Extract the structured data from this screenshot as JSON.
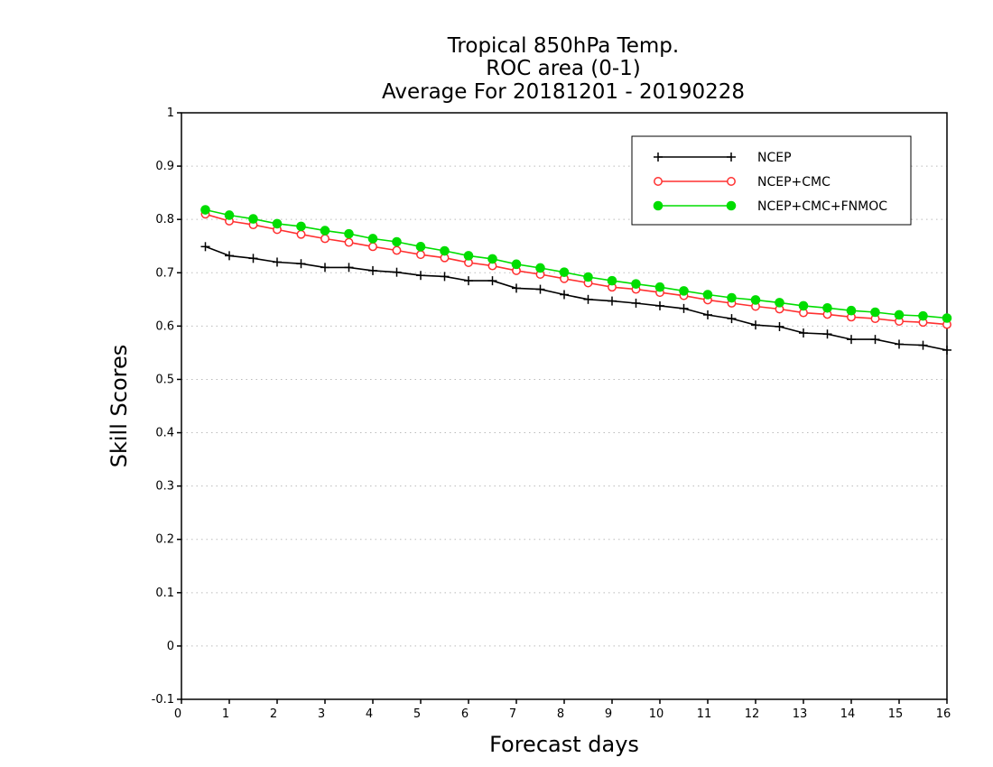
{
  "chart_data": {
    "type": "line",
    "title": [
      "Tropical 850hPa Temp.",
      "ROC area (0-1)",
      "Average For 20181201 - 20190228"
    ],
    "xlabel": "Forecast days",
    "ylabel": "Skill Scores",
    "xlim": [
      0,
      16
    ],
    "ylim": [
      -0.1,
      1
    ],
    "xticks": [
      0,
      1,
      2,
      3,
      4,
      5,
      6,
      7,
      8,
      9,
      10,
      11,
      12,
      13,
      14,
      15,
      16
    ],
    "yticks": [
      -0.1,
      0,
      0.1,
      0.2,
      0.3,
      0.4,
      0.5,
      0.6,
      0.7,
      0.8,
      0.9,
      1
    ],
    "ytick_labels": [
      "-0.1",
      "0",
      "0.1",
      "0.2",
      "0.3",
      "0.4",
      "0.5",
      "0.6",
      "0.7",
      "0.8",
      "0.9",
      "1"
    ],
    "grid": "horizontal-dotted",
    "legend_position": "top-right",
    "x": [
      0.5,
      1,
      1.5,
      2,
      2.5,
      3,
      3.5,
      4,
      4.5,
      5,
      5.5,
      6,
      6.5,
      7,
      7.5,
      8,
      8.5,
      9,
      9.5,
      10,
      10.5,
      11,
      11.5,
      12,
      12.5,
      13,
      13.5,
      14,
      14.5,
      15,
      15.5,
      16
    ],
    "series": [
      {
        "name": "NCEP",
        "color": "#000000",
        "marker": "plus",
        "values": [
          0.749,
          0.732,
          0.727,
          0.72,
          0.717,
          0.71,
          0.71,
          0.704,
          0.701,
          0.695,
          0.693,
          0.685,
          0.685,
          0.671,
          0.669,
          0.659,
          0.65,
          0.647,
          0.643,
          0.638,
          0.633,
          0.621,
          0.614,
          0.602,
          0.599,
          0.587,
          0.585,
          0.575,
          0.575,
          0.566,
          0.564,
          0.555
        ]
      },
      {
        "name": "NCEP+CMC",
        "color": "#ff3030",
        "marker": "open-circle",
        "values": [
          0.81,
          0.797,
          0.79,
          0.781,
          0.772,
          0.764,
          0.757,
          0.749,
          0.742,
          0.734,
          0.728,
          0.719,
          0.713,
          0.704,
          0.697,
          0.689,
          0.681,
          0.673,
          0.669,
          0.663,
          0.657,
          0.649,
          0.643,
          0.637,
          0.632,
          0.625,
          0.622,
          0.617,
          0.614,
          0.609,
          0.607,
          0.603
        ]
      },
      {
        "name": "NCEP+CMC+FNMOC",
        "color": "#00dd00",
        "marker": "filled-circle",
        "values": [
          0.818,
          0.808,
          0.801,
          0.792,
          0.787,
          0.779,
          0.773,
          0.764,
          0.758,
          0.749,
          0.741,
          0.732,
          0.726,
          0.716,
          0.709,
          0.701,
          0.692,
          0.685,
          0.679,
          0.673,
          0.666,
          0.659,
          0.653,
          0.649,
          0.644,
          0.638,
          0.634,
          0.629,
          0.626,
          0.621,
          0.619,
          0.615
        ]
      }
    ]
  }
}
